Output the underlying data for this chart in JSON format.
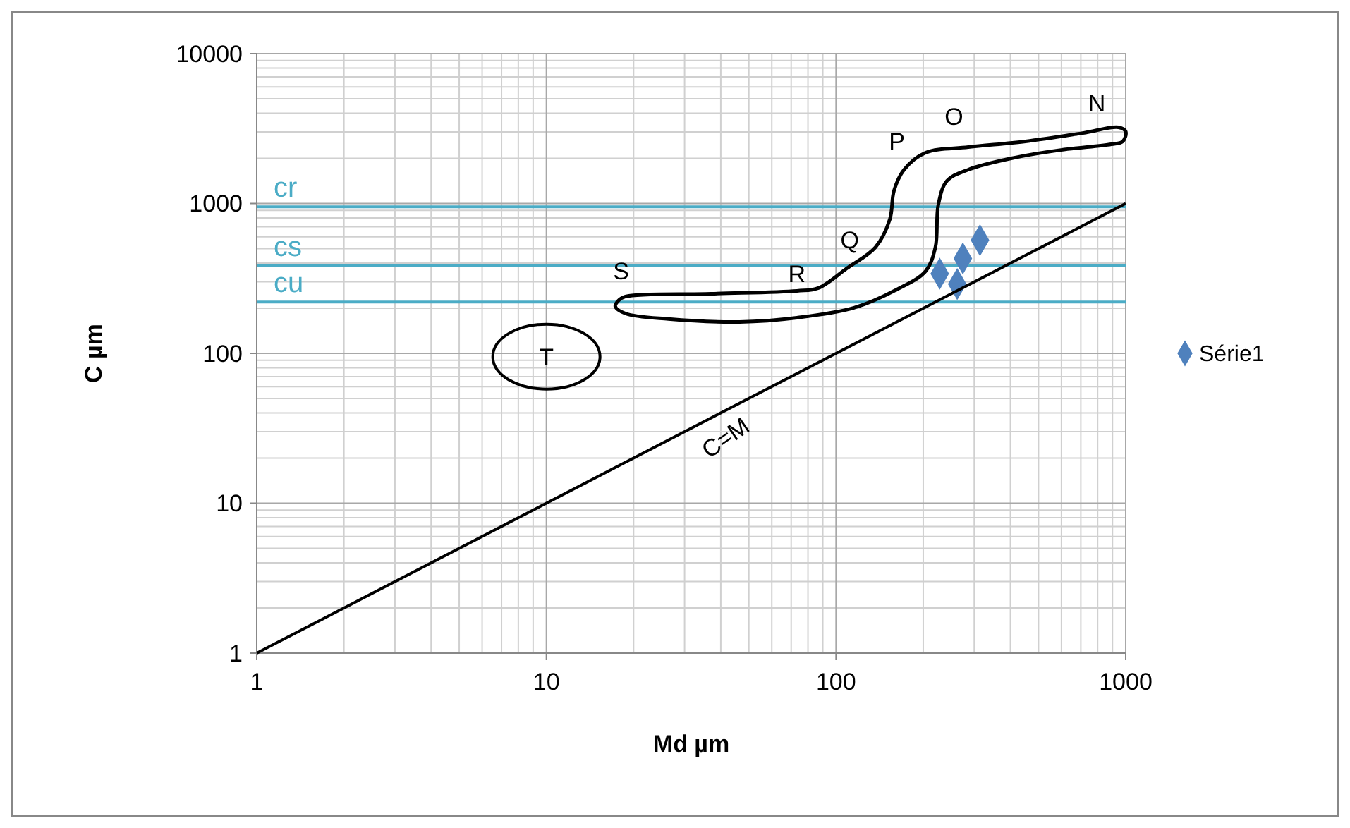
{
  "chart_data": {
    "type": "scatter",
    "xlabel": "Md µm",
    "ylabel": "C µm",
    "log": "xy",
    "xlim": [
      1,
      1000
    ],
    "ylim": [
      1,
      10000
    ],
    "xticks": [
      1,
      10,
      100,
      1000
    ],
    "yticks": [
      1,
      10,
      100,
      1000,
      10000
    ],
    "grid": true,
    "legend": "right",
    "x": [
      228,
      274,
      314,
      262
    ],
    "series": [
      {
        "name": "Série1",
        "color": "#4f81bd",
        "marker": "diamond",
        "values": [
          340,
          430,
          569,
          290
        ]
      },
      {
        "type": "line",
        "color": "#000000",
        "x": [
          1,
          1000
        ],
        "values": [
          1,
          1000
        ]
      }
    ],
    "ref_lines": [
      {
        "axis": "y",
        "value": 950,
        "label": "cr",
        "color": "#4bacc6"
      },
      {
        "axis": "y",
        "value": 385,
        "label": "cs",
        "color": "#4bacc6"
      },
      {
        "axis": "y",
        "value": 220,
        "label": "cu",
        "color": "#4bacc6"
      }
    ],
    "annotations": [
      "S",
      "R",
      "Q",
      "P",
      "O",
      "N",
      "T",
      "C=M"
    ]
  }
}
